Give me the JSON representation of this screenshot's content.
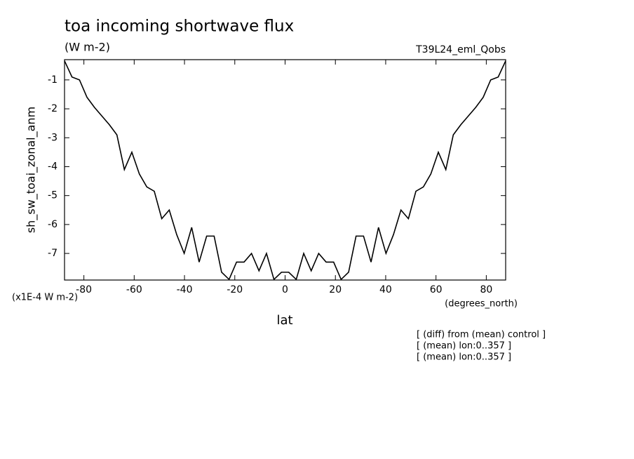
{
  "chart_data": {
    "type": "line",
    "title": "toa incoming shortwave flux",
    "subtitle": "(W m-2)",
    "run_label": "T39L24_eml_Qobs",
    "y_label": "sh_sw_toai_zonal_anm",
    "y_unit": "(x1E-4 W m-2)",
    "x_label": "lat",
    "x_unit": "(degrees_north)",
    "notes": [
      "[ (diff) from (mean) control ]",
      "[ (mean) lon:0..357 ]",
      "[ (mean) lon:0..357 ]"
    ],
    "x": [
      -87.7,
      -84.73,
      -81.75,
      -78.78,
      -75.8,
      -72.83,
      -69.86,
      -66.88,
      -63.91,
      -60.93,
      -57.96,
      -54.99,
      -52.01,
      -49.04,
      -46.06,
      -43.09,
      -40.12,
      -37.14,
      -34.17,
      -31.19,
      -28.22,
      -25.25,
      -22.27,
      -19.3,
      -16.32,
      -13.35,
      -10.38,
      -7.4,
      -4.43,
      -1.45,
      1.45,
      4.43,
      7.4,
      10.38,
      13.35,
      16.32,
      19.3,
      22.27,
      25.25,
      28.22,
      31.19,
      34.17,
      37.14,
      40.12,
      43.09,
      46.06,
      49.04,
      52.01,
      54.99,
      57.96,
      60.93,
      63.91,
      66.88,
      69.86,
      72.83,
      75.8,
      78.78,
      81.75,
      84.73,
      87.7
    ],
    "series": [
      {
        "color": "#000000",
        "values": [
          -0.34,
          -0.9,
          -1.0,
          -1.6,
          -1.95,
          -2.25,
          -2.55,
          -2.9,
          -4.1,
          -3.5,
          -4.25,
          -4.7,
          -4.85,
          -5.8,
          -5.5,
          -6.35,
          -7.0,
          -6.1,
          -7.3,
          -6.4,
          -6.4,
          -7.65,
          -7.9,
          -7.3,
          -7.3,
          -7.0,
          -7.6,
          -7.0,
          -7.9,
          -7.65,
          -7.65,
          -7.9,
          -7.0,
          -7.6,
          -7.0,
          -7.3,
          -7.3,
          -7.9,
          -7.65,
          -6.4,
          -6.4,
          -7.3,
          -6.1,
          -7.0,
          -6.35,
          -5.5,
          -5.8,
          -4.85,
          -4.7,
          -4.25,
          -3.5,
          -4.1,
          -2.9,
          -2.55,
          -2.25,
          -1.95,
          -1.6,
          -1.0,
          -0.9,
          -0.34
        ]
      }
    ],
    "xlim": [
      -87.7,
      87.7
    ],
    "xticks": [
      -80,
      -60,
      -40,
      -20,
      0,
      20,
      40,
      60,
      80
    ],
    "ylim": [
      -7.92,
      -0.3
    ],
    "yticks": [
      -1,
      -2,
      -3,
      -4,
      -5,
      -6,
      -7
    ],
    "grid": false
  }
}
